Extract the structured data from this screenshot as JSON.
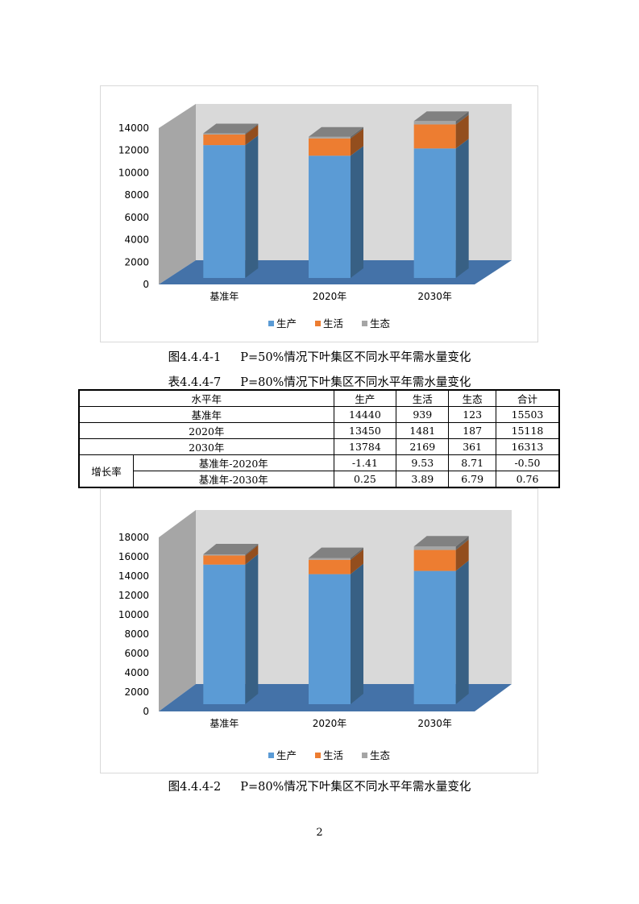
{
  "caption1": {
    "num": "图4.4.4-1",
    "text": "P=50%情况下叶集区不同水平年需水量变化"
  },
  "table_caption": {
    "num": "表4.4.4-7",
    "text": "P=80%情况下叶集区不同水平年需水量变化"
  },
  "caption2": {
    "num": "图4.4.4-2",
    "text": "P=80%情况下叶集区不同水平年需水量变化"
  },
  "table": {
    "headers": [
      "水平年",
      "生产",
      "生活",
      "生态",
      "合计"
    ],
    "rows": [
      [
        "基准年",
        "14440",
        "939",
        "123",
        "15503"
      ],
      [
        "2020年",
        "13450",
        "1481",
        "187",
        "15118"
      ],
      [
        "2030年",
        "13784",
        "2169",
        "361",
        "16313"
      ]
    ],
    "group_label": "增长率",
    "growth_rows": [
      [
        "基准年-2020年",
        "-1.41",
        "9.53",
        "8.71",
        "-0.50"
      ],
      [
        "基准年-2030年",
        "0.25",
        "3.89",
        "6.79",
        "0.76"
      ]
    ]
  },
  "page_number": "2",
  "colors": {
    "production": "#5B9BD5",
    "living": "#ED7D31",
    "ecology": "#A5A5A5",
    "wall": "#D9D9D9",
    "floor": "#4472A8"
  },
  "chart_data": [
    {
      "type": "bar",
      "stacked": true,
      "categories": [
        "基准年",
        "2020年",
        "2030年"
      ],
      "series": [
        {
          "name": "生产",
          "values": [
            11900,
            10950,
            11600
          ]
        },
        {
          "name": "生活",
          "values": [
            950,
            1550,
            2150
          ]
        },
        {
          "name": "生态",
          "values": [
            100,
            150,
            300
          ]
        }
      ],
      "ylim": [
        0,
        14000
      ],
      "yticks": [
        "0",
        "2000",
        "4000",
        "6000",
        "8000",
        "10000",
        "12000",
        "14000"
      ],
      "legend_position": "bottom",
      "grid": false
    },
    {
      "type": "bar",
      "stacked": true,
      "categories": [
        "基准年",
        "2020年",
        "2030年"
      ],
      "series": [
        {
          "name": "生产",
          "values": [
            14440,
            13450,
            13784
          ]
        },
        {
          "name": "生活",
          "values": [
            939,
            1481,
            2169
          ]
        },
        {
          "name": "生态",
          "values": [
            123,
            187,
            361
          ]
        }
      ],
      "ylim": [
        0,
        18000
      ],
      "yticks": [
        "0",
        "2000",
        "4000",
        "6000",
        "8000",
        "10000",
        "12000",
        "14000",
        "16000",
        "18000"
      ],
      "legend_position": "bottom",
      "grid": false
    }
  ]
}
